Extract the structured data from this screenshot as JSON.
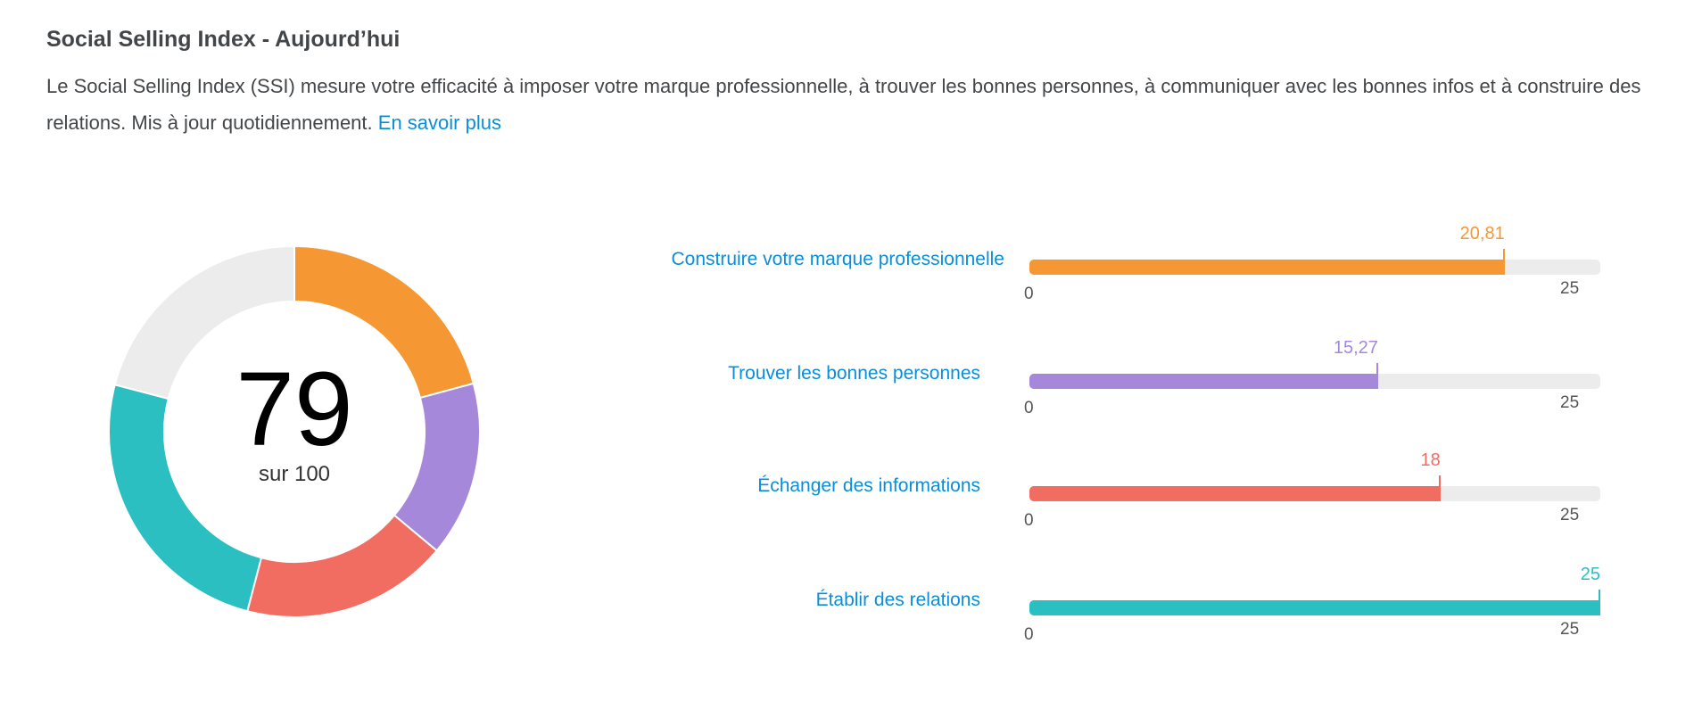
{
  "header": {
    "title": "Social Selling Index - Aujourd’hui",
    "description": "Le Social Selling Index (SSI) mesure votre efficacité à imposer votre marque professionnelle, à trouver les bonnes personnes, à communiquer avec les bonnes infos et à construire des relations. Mis à jour quotidiennement.",
    "link": "En savoir plus"
  },
  "chart_data": [
    {
      "type": "pie",
      "subtype": "donut",
      "center_value": "79",
      "center_label": "sur 100",
      "max": 100,
      "slices": [
        {
          "name": "Construire votre marque professionnelle",
          "value": 20.81,
          "color": "#f59733"
        },
        {
          "name": "Trouver les bonnes personnes",
          "value": 15.27,
          "color": "#a688db"
        },
        {
          "name": "Échanger des informations",
          "value": 18,
          "color": "#f16d61"
        },
        {
          "name": "Établir des relations",
          "value": 25,
          "color": "#2bbfc2"
        },
        {
          "name": "remaining",
          "value": 20.92,
          "color": "#ececec"
        }
      ]
    },
    {
      "type": "bar",
      "orientation": "horizontal",
      "xlim": [
        0,
        25
      ],
      "categories": [
        "Construire votre marque professionnelle",
        "Trouver les bonnes personnes",
        "Échanger des informations",
        "Établir des relations"
      ],
      "values": [
        20.81,
        15.27,
        18,
        25
      ],
      "value_labels": [
        "20,81",
        "15,27",
        "18",
        "25"
      ],
      "colors": [
        "#f59733",
        "#a688db",
        "#f16d61",
        "#2bbfc2"
      ],
      "tick_labels": [
        "0",
        "25"
      ]
    }
  ]
}
